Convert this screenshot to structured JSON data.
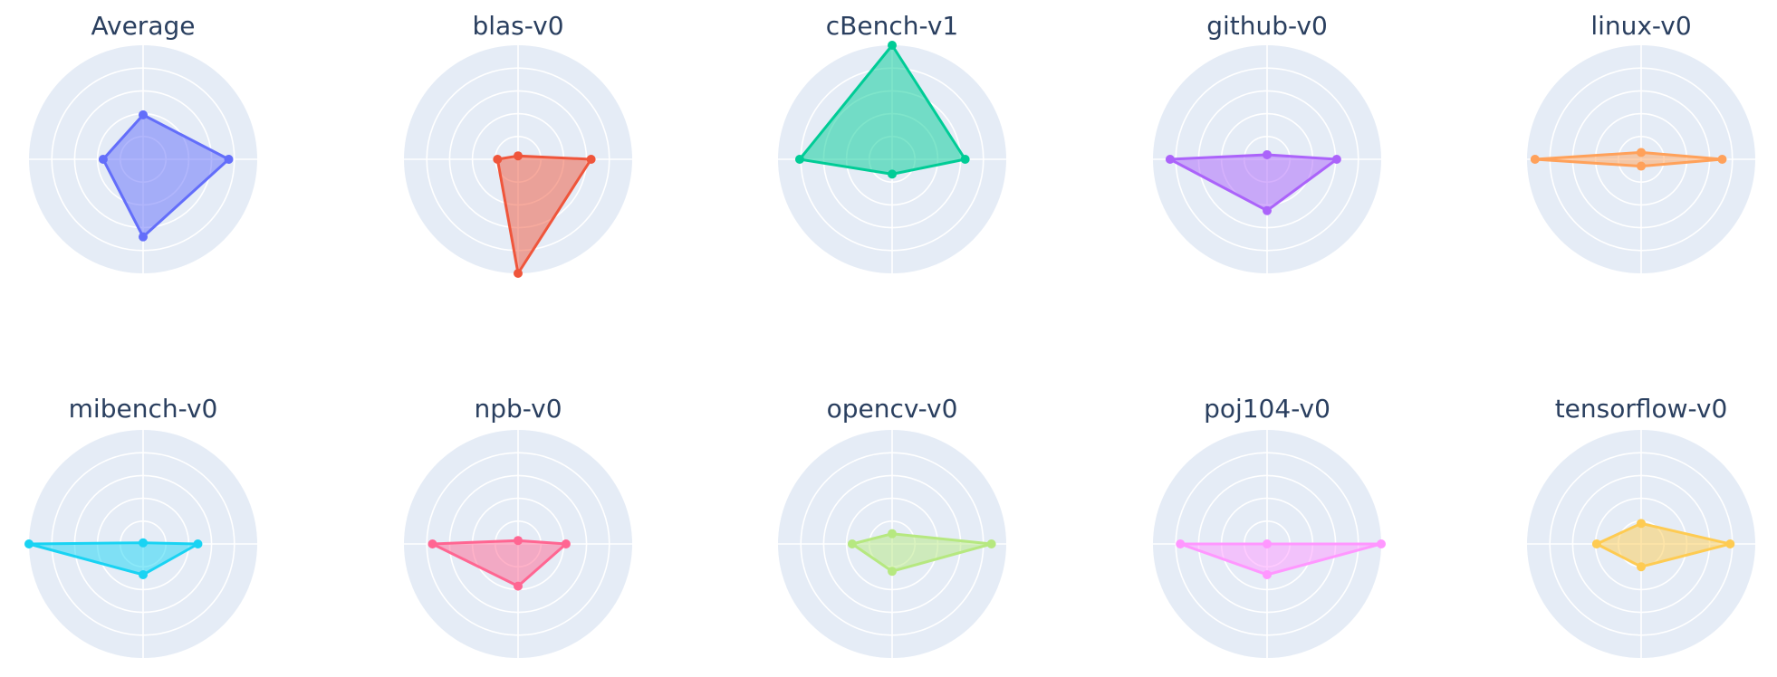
{
  "chart_data": [
    {
      "type": "radar",
      "title": "Average",
      "color": "#636efa",
      "r_range": [
        0,
        1
      ],
      "angles_deg": [
        0,
        90,
        180,
        270
      ],
      "values": [
        0.75,
        0.39,
        0.35,
        0.68
      ]
    },
    {
      "type": "radar",
      "title": "blas-v0",
      "color": "#ef553b",
      "r_range": [
        0,
        1
      ],
      "angles_deg": [
        0,
        90,
        180,
        270
      ],
      "values": [
        0.64,
        0.03,
        0.18,
        1.0
      ]
    },
    {
      "type": "radar",
      "title": "cBench-v1",
      "color": "#00cc96",
      "r_range": [
        0,
        1
      ],
      "angles_deg": [
        0,
        90,
        180,
        270
      ],
      "values": [
        0.64,
        1.0,
        0.81,
        0.13
      ]
    },
    {
      "type": "radar",
      "title": "github-v0",
      "color": "#ab63fa",
      "r_range": [
        0,
        1
      ],
      "angles_deg": [
        0,
        90,
        180,
        270
      ],
      "values": [
        0.61,
        0.04,
        0.85,
        0.45
      ]
    },
    {
      "type": "radar",
      "title": "linux-v0",
      "color": "#ffa15a",
      "r_range": [
        0,
        1
      ],
      "angles_deg": [
        0,
        90,
        180,
        270
      ],
      "values": [
        0.71,
        0.06,
        0.93,
        0.06
      ]
    },
    {
      "type": "radar",
      "title": "mibench-v0",
      "color": "#19d3f3",
      "r_range": [
        0,
        1
      ],
      "angles_deg": [
        0,
        90,
        180,
        270
      ],
      "values": [
        0.48,
        0.01,
        1.0,
        0.27
      ]
    },
    {
      "type": "radar",
      "title": "npb-v0",
      "color": "#ff6692",
      "r_range": [
        0,
        1
      ],
      "angles_deg": [
        0,
        90,
        180,
        270
      ],
      "values": [
        0.42,
        0.03,
        0.75,
        0.37
      ]
    },
    {
      "type": "radar",
      "title": "opencv-v0",
      "color": "#b6e880",
      "r_range": [
        0,
        1
      ],
      "angles_deg": [
        0,
        90,
        180,
        270
      ],
      "values": [
        0.87,
        0.09,
        0.35,
        0.24
      ]
    },
    {
      "type": "radar",
      "title": "poj104-v0",
      "color": "#ff97ff",
      "r_range": [
        0,
        1
      ],
      "angles_deg": [
        0,
        90,
        180,
        270
      ],
      "values": [
        1.0,
        0.0,
        0.76,
        0.27
      ]
    },
    {
      "type": "radar",
      "title": "tensorflow-v0",
      "color": "#fecb52",
      "r_range": [
        0,
        1
      ],
      "angles_deg": [
        0,
        90,
        180,
        270
      ],
      "values": [
        0.78,
        0.18,
        0.39,
        0.2
      ]
    }
  ],
  "grid": {
    "rings": 5,
    "spokes": 4,
    "background": "#e5ecf6",
    "line_color": "#ffffff",
    "title_color": "#2a3f5f"
  }
}
